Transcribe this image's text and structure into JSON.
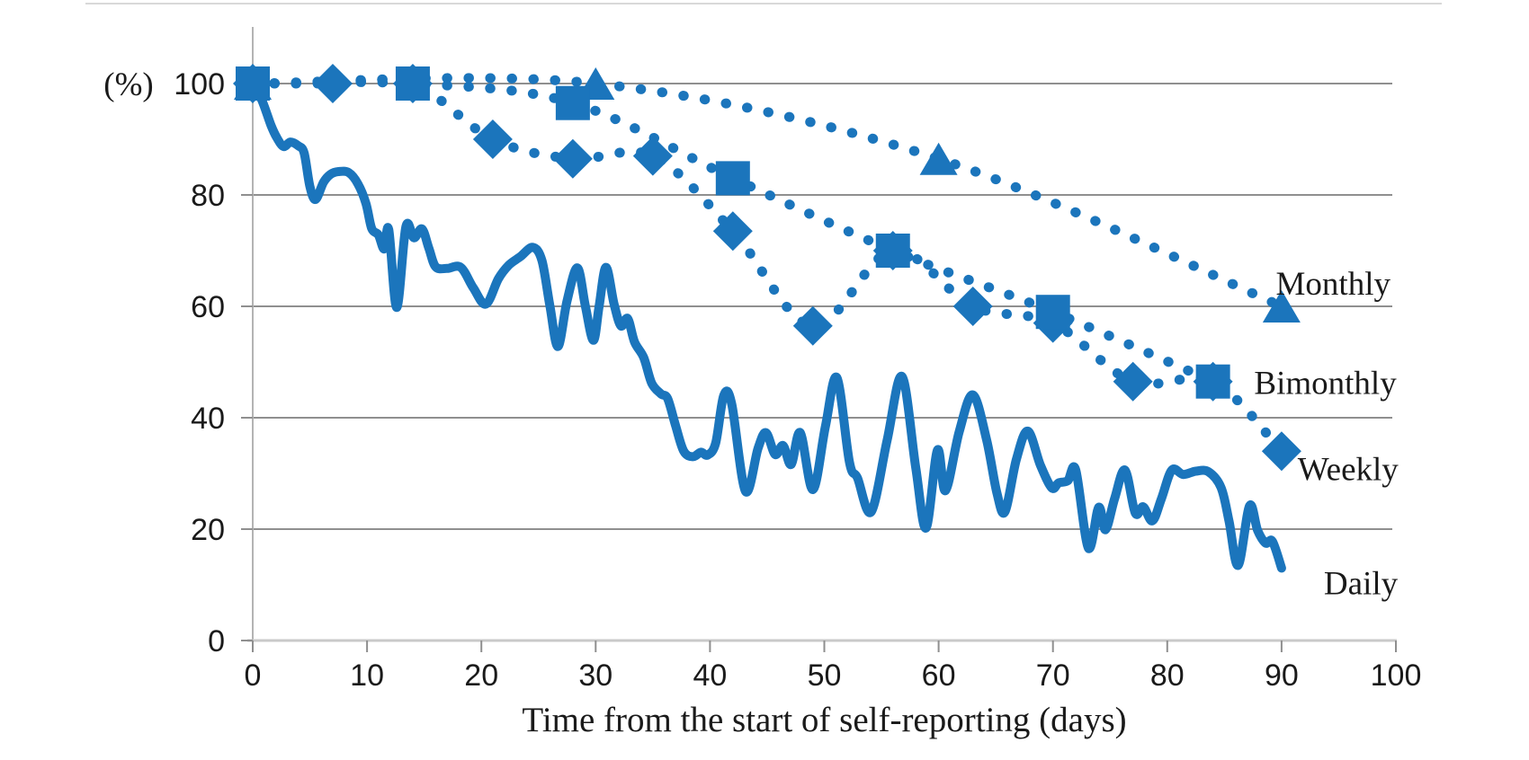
{
  "page": {
    "background": "#ffffff",
    "top_rule_color": "#d9d9d9"
  },
  "chart_data": {
    "type": "line",
    "title": "",
    "xlabel": "Time from the start of self-reporting (days)",
    "ylabel": "(%)",
    "xlim": [
      0,
      100
    ],
    "ylim": [
      0,
      110
    ],
    "x_ticks": [
      "0",
      "10",
      "20",
      "30",
      "40",
      "50",
      "60",
      "70",
      "80",
      "90",
      "100"
    ],
    "x_tick_values": [
      0,
      10,
      20,
      30,
      40,
      50,
      60,
      70,
      80,
      90,
      100
    ],
    "y_ticks": [
      "0",
      "20",
      "40",
      "60",
      "80",
      "100"
    ],
    "y_tick_values": [
      0,
      20,
      40,
      60,
      80,
      100
    ],
    "grid": "horizontal gridlines on",
    "legend_position": "inline labels at right end of each line",
    "colors": {
      "series_blue": "#1b75bc",
      "gridline": "#8f8f8f",
      "axis_line": "#c9c9c9",
      "tick": "#8f8f8f",
      "text": "#1a1a1a"
    },
    "series": [
      {
        "name": "Monthly",
        "marker": "triangle",
        "line_style": "dotted",
        "label_anchor": {
          "x": 89.5,
          "y": 64.2
        },
        "points": [
          [
            0,
            100
          ],
          [
            30,
            100
          ],
          [
            60,
            86.5
          ],
          [
            90,
            60
          ]
        ]
      },
      {
        "name": "Bimonthly",
        "marker": "square",
        "line_style": "dotted",
        "label_anchor": {
          "x": 87.6,
          "y": 46.4
        },
        "points": [
          [
            0,
            100
          ],
          [
            14,
            100
          ],
          [
            28,
            96.5
          ],
          [
            42,
            83
          ],
          [
            56,
            70
          ],
          [
            70,
            59
          ],
          [
            84,
            46.5
          ]
        ]
      },
      {
        "name": "Weekly",
        "marker": "diamond",
        "line_style": "dotted",
        "label_anchor": {
          "x": 91.4,
          "y": 30.9
        },
        "points": [
          [
            0,
            100
          ],
          [
            7,
            100
          ],
          [
            14,
            100
          ],
          [
            21,
            90
          ],
          [
            28,
            86.5
          ],
          [
            35,
            87
          ],
          [
            42,
            73.5
          ],
          [
            49,
            56.5
          ],
          [
            56,
            70
          ],
          [
            63,
            60
          ],
          [
            70,
            57
          ],
          [
            77,
            46.5
          ],
          [
            84,
            46.5
          ],
          [
            90,
            34
          ]
        ]
      },
      {
        "name": "Daily",
        "marker": "none",
        "line_style": "solid",
        "label_anchor": {
          "x": 93.7,
          "y": 10.4
        },
        "points": [
          [
            0,
            100
          ],
          [
            0.8,
            97
          ],
          [
            1.6,
            92.5
          ],
          [
            2.1,
            90.3
          ],
          [
            2.7,
            88.7
          ],
          [
            3.3,
            89.5
          ],
          [
            4,
            88.8
          ],
          [
            4.5,
            87.5
          ],
          [
            5,
            81.5
          ],
          [
            5.5,
            79.2
          ],
          [
            6.2,
            82.3
          ],
          [
            6.8,
            83.7
          ],
          [
            7.5,
            84.2
          ],
          [
            8.4,
            84
          ],
          [
            9.2,
            82
          ],
          [
            9.9,
            78.5
          ],
          [
            10.4,
            74
          ],
          [
            11,
            72.8
          ],
          [
            11.5,
            70.3
          ],
          [
            11.9,
            73.8
          ],
          [
            12.6,
            59.8
          ],
          [
            13.4,
            74.3
          ],
          [
            14.1,
            72.3
          ],
          [
            14.8,
            73.9
          ],
          [
            15.4,
            70.5
          ],
          [
            16,
            67.1
          ],
          [
            17,
            66.8
          ],
          [
            18.2,
            67
          ],
          [
            19.3,
            63.3
          ],
          [
            20.4,
            60.4
          ],
          [
            21.5,
            65
          ],
          [
            22.4,
            67.4
          ],
          [
            23.4,
            68.9
          ],
          [
            24.5,
            70.6
          ],
          [
            25.3,
            68.2
          ],
          [
            26,
            60
          ],
          [
            26.7,
            52.8
          ],
          [
            27.5,
            61
          ],
          [
            28.4,
            66.9
          ],
          [
            29.1,
            60
          ],
          [
            29.8,
            53.9
          ],
          [
            30.3,
            60
          ],
          [
            30.9,
            67
          ],
          [
            31.6,
            60.5
          ],
          [
            32.2,
            56.5
          ],
          [
            32.8,
            57.8
          ],
          [
            33.4,
            53.6
          ],
          [
            34.2,
            50.8
          ],
          [
            34.9,
            46.2
          ],
          [
            35.7,
            44.3
          ],
          [
            36.3,
            43.4
          ],
          [
            37,
            38.5
          ],
          [
            37.7,
            34
          ],
          [
            38.5,
            33
          ],
          [
            39.2,
            33.8
          ],
          [
            39.8,
            33.3
          ],
          [
            40.5,
            35.5
          ],
          [
            41.2,
            44
          ],
          [
            41.9,
            42.5
          ],
          [
            43.1,
            26.8
          ],
          [
            44.2,
            34.5
          ],
          [
            44.9,
            37.3
          ],
          [
            45.7,
            33.4
          ],
          [
            46.4,
            35
          ],
          [
            47.1,
            31.6
          ],
          [
            47.9,
            37.3
          ],
          [
            49,
            27.1
          ],
          [
            50.1,
            38.5
          ],
          [
            51.1,
            47.2
          ],
          [
            52.2,
            32
          ],
          [
            52.9,
            29.2
          ],
          [
            54.1,
            23.1
          ],
          [
            55.5,
            36
          ],
          [
            56.8,
            47.4
          ],
          [
            58,
            31
          ],
          [
            58.9,
            20.2
          ],
          [
            59.9,
            34.2
          ],
          [
            60.6,
            26.9
          ],
          [
            61.8,
            37.5
          ],
          [
            63,
            44.1
          ],
          [
            64.2,
            36
          ],
          [
            65.1,
            26.5
          ],
          [
            65.8,
            23.1
          ],
          [
            66.8,
            32.5
          ],
          [
            67.8,
            37.6
          ],
          [
            68.9,
            31.5
          ],
          [
            69.9,
            27.4
          ],
          [
            70.5,
            28.3
          ],
          [
            71.3,
            28.7
          ],
          [
            72,
            30.6
          ],
          [
            73.1,
            16.6
          ],
          [
            74,
            23.9
          ],
          [
            74.6,
            19.9
          ],
          [
            75.4,
            25.5
          ],
          [
            76.3,
            30.6
          ],
          [
            77.2,
            22.9
          ],
          [
            77.9,
            24
          ],
          [
            78.7,
            21.5
          ],
          [
            79.5,
            25.5
          ],
          [
            80.4,
            30.6
          ],
          [
            81.4,
            29.8
          ],
          [
            82.5,
            30.4
          ],
          [
            83.6,
            30.3
          ],
          [
            84.7,
            27.5
          ],
          [
            85.4,
            21.5
          ],
          [
            86.2,
            13.5
          ],
          [
            87.2,
            24.2
          ],
          [
            87.9,
            19.8
          ],
          [
            88.6,
            17.5
          ],
          [
            89.2,
            17.8
          ],
          [
            90,
            13
          ]
        ]
      }
    ]
  }
}
